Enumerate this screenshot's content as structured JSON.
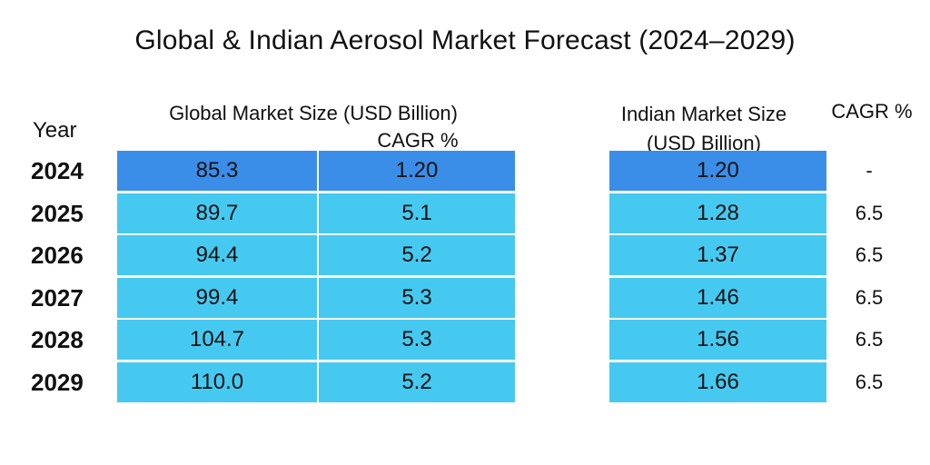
{
  "title": "Global & Indian Aerosol Market Forecast (2024–2029)",
  "headers": {
    "year": "Year",
    "global_size": "Global Market Size (USD Billion)",
    "global_cagr": "CAGR %",
    "indian_size_line1": "Indian Market Size",
    "indian_size_line2": "(USD Billion)",
    "indian_cagr": "CAGR %"
  },
  "colors": {
    "first_row": "#3a8ee8",
    "rows": "#45c9f0"
  },
  "chart_data": {
    "type": "table",
    "title": "Global & Indian Aerosol Market Forecast (2024–2029)",
    "columns": [
      "Year",
      "Global Market Size (USD Billion)",
      "CAGR %",
      "Indian Market Size (USD Billion)",
      "CAGR %"
    ],
    "rows": [
      {
        "year": "2024",
        "global_size": "85.3",
        "global_cagr": "1.20",
        "indian_size": "1.20",
        "indian_cagr": "-"
      },
      {
        "year": "2025",
        "global_size": "89.7",
        "global_cagr": "5.1",
        "indian_size": "1.28",
        "indian_cagr": "6.5"
      },
      {
        "year": "2026",
        "global_size": "94.4",
        "global_cagr": "5.2",
        "indian_size": "1.37",
        "indian_cagr": "6.5"
      },
      {
        "year": "2027",
        "global_size": "99.4",
        "global_cagr": "5.3",
        "indian_size": "1.46",
        "indian_cagr": "6.5"
      },
      {
        "year": "2028",
        "global_size": "104.7",
        "global_cagr": "5.3",
        "indian_size": "1.56",
        "indian_cagr": "6.5"
      },
      {
        "year": "2029",
        "global_size": "110.0",
        "global_cagr": "5.2",
        "indian_size": "1.66",
        "indian_cagr": "6.5"
      }
    ]
  }
}
